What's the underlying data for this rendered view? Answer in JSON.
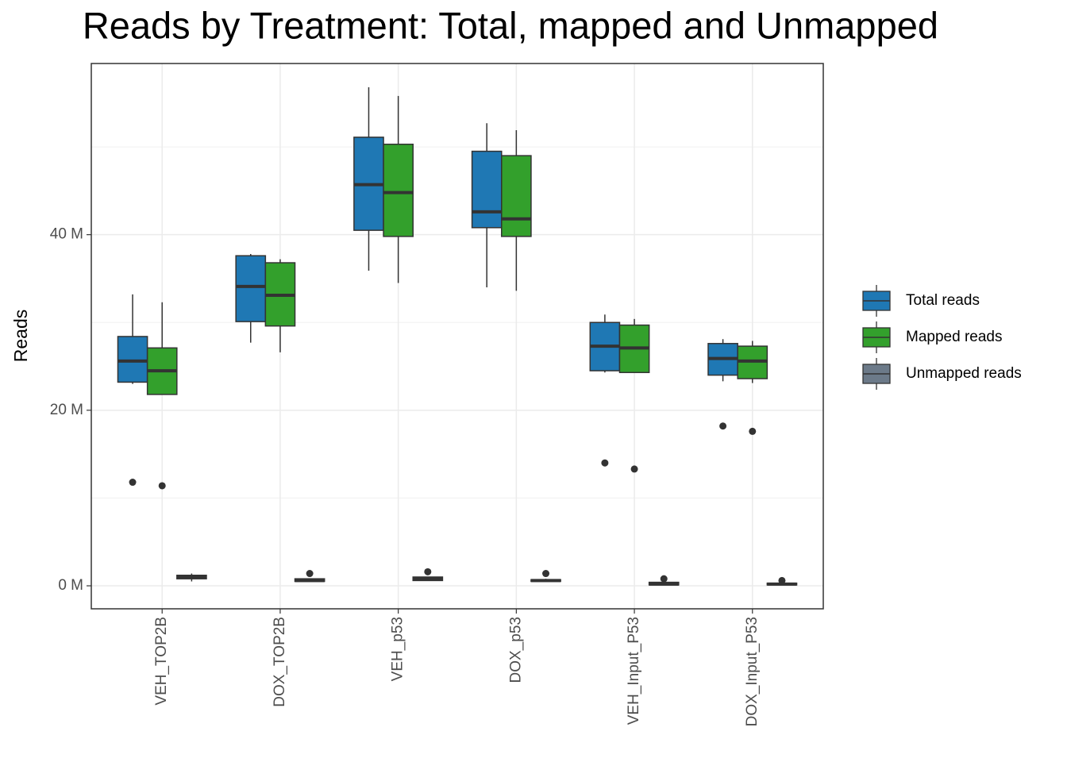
{
  "chart_data": {
    "type": "boxplot",
    "title": "Reads by Treatment: Total, mapped and Unmapped",
    "y_label": "Reads",
    "categories": [
      "VEH_TOP2B",
      "DOX_TOP2B",
      "VEH_p53",
      "DOX_p53",
      "VEH_Input_P53",
      "DOX_Input_P53"
    ],
    "ylim": [
      -2.62,
      59.5
    ],
    "yticks": [
      {
        "value": 0,
        "label": "0 M"
      },
      {
        "value": 20,
        "label": "20 M"
      },
      {
        "value": 40,
        "label": "40 M"
      }
    ],
    "minor_yticks": [
      10,
      30,
      50
    ],
    "grid": true,
    "legend_position": "right",
    "series": [
      {
        "name": "Total reads",
        "color": "#1f78b4",
        "min": [
          23.0,
          27.7,
          35.9,
          34.0,
          24.3,
          23.3
        ],
        "q1": [
          23.2,
          30.1,
          40.5,
          40.8,
          24.5,
          24.0
        ],
        "median": [
          25.6,
          34.1,
          45.7,
          42.6,
          27.3,
          25.9
        ],
        "q3": [
          28.4,
          37.6,
          51.1,
          49.5,
          30.0,
          27.6
        ],
        "max": [
          33.2,
          37.8,
          56.8,
          52.7,
          30.9,
          28.1
        ],
        "outliers": [
          [
            11.8
          ],
          [],
          [],
          [],
          [
            14.0
          ],
          [
            18.2
          ]
        ]
      },
      {
        "name": "Mapped reads",
        "color": "#33a02c",
        "min": [
          21.8,
          26.6,
          34.5,
          33.6,
          24.3,
          23.1
        ],
        "q1": [
          21.8,
          29.6,
          39.8,
          39.8,
          24.3,
          23.6
        ],
        "median": [
          24.5,
          33.1,
          44.8,
          41.8,
          27.1,
          25.6
        ],
        "q3": [
          27.1,
          36.8,
          50.3,
          49.0,
          29.7,
          27.3
        ],
        "max": [
          32.3,
          37.2,
          55.8,
          51.9,
          30.4,
          27.9
        ],
        "outliers": [
          [
            11.4
          ],
          [],
          [],
          [],
          [
            13.3
          ],
          [
            17.6
          ]
        ]
      },
      {
        "name": "Unmapped reads",
        "color": "#6c7a89",
        "min": [
          0.5,
          0.5,
          0.6,
          0.5,
          0.1,
          0.1
        ],
        "q1": [
          0.8,
          0.5,
          0.6,
          0.5,
          0.1,
          0.1
        ],
        "median": [
          1.0,
          0.6,
          0.8,
          0.6,
          0.2,
          0.2
        ],
        "q3": [
          1.2,
          0.8,
          1.0,
          0.7,
          0.4,
          0.3
        ],
        "max": [
          1.4,
          0.8,
          1.0,
          0.8,
          0.4,
          0.3
        ],
        "outliers": [
          [],
          [
            1.4
          ],
          [
            1.6
          ],
          [
            1.4
          ],
          [
            0.8
          ],
          [
            0.6
          ]
        ]
      }
    ]
  }
}
